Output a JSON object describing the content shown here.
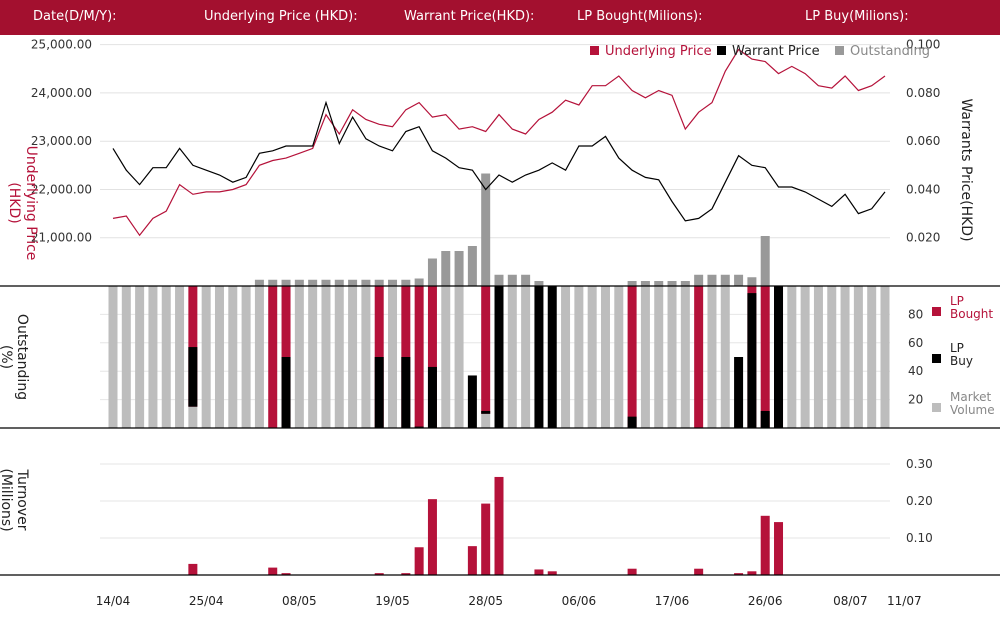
{
  "header": {
    "fields": [
      "Date(D/M/Y):",
      "Underlying Price (HKD):",
      "Warrant  Price(HKD):",
      "LP Bought(Milions):",
      "LP Buy(Milions):"
    ]
  },
  "colors": {
    "header": "#a3102f",
    "underlying": "#b5123a",
    "warrant": "#000000",
    "outstanding": "#999999",
    "market_volume": "#bdbdbd",
    "lp_bought": "#b5123a",
    "lp_buy": "#000000",
    "turnover": "#b5123a"
  },
  "chart_data": [
    {
      "type": "line",
      "panel": "price",
      "legend": {
        "placement": "top-right",
        "entries": [
          "Underlying Price",
          "Warrant  Price",
          "Outstanding"
        ]
      },
      "left_axis": {
        "label": "Underlying Price (HKD)",
        "ticks": [
          "25,000.00",
          "24,000.00",
          "23,000.00",
          "22,000.00",
          "21,000.00"
        ],
        "tick_values": [
          25000,
          24000,
          23000,
          22000,
          21000
        ],
        "range": [
          20000,
          25200
        ]
      },
      "right_axis": {
        "label": "Warrants  Price(HKD)",
        "ticks": [
          "0.100",
          "0.080",
          "0.060",
          "0.040",
          "0.020"
        ],
        "tick_values": [
          0.1,
          0.08,
          0.06,
          0.04,
          0.02
        ],
        "range": [
          0,
          0.104
        ]
      },
      "series": [
        {
          "name": "Underlying Price",
          "axis": "left",
          "values": [
            21400,
            21450,
            21050,
            21400,
            21550,
            22100,
            21900,
            21950,
            21950,
            22000,
            22100,
            22500,
            22600,
            22650,
            22750,
            22850,
            23550,
            23150,
            23650,
            23450,
            23350,
            23300,
            23650,
            23800,
            23500,
            23550,
            23250,
            23300,
            23200,
            23550,
            23250,
            23150,
            23450,
            23600,
            23850,
            23750,
            24150,
            24150,
            24350,
            24050,
            23900,
            24050,
            23950,
            23250,
            23600,
            23800,
            24450,
            24900,
            24700,
            24650,
            24400,
            24550,
            24400,
            24150,
            24100,
            24350,
            24050,
            24150,
            24350
          ]
        },
        {
          "name": "Warrant  Price",
          "axis": "right",
          "values": [
            0.057,
            0.048,
            0.042,
            0.049,
            0.049,
            0.057,
            0.05,
            0.048,
            0.046,
            0.043,
            0.045,
            0.055,
            0.056,
            0.058,
            0.058,
            0.058,
            0.076,
            0.059,
            0.07,
            0.061,
            0.058,
            0.056,
            0.064,
            0.066,
            0.056,
            0.053,
            0.049,
            0.048,
            0.04,
            0.046,
            0.043,
            0.046,
            0.048,
            0.051,
            0.048,
            0.058,
            0.058,
            0.062,
            0.053,
            0.048,
            0.045,
            0.044,
            0.035,
            0.027,
            0.028,
            0.032,
            0.043,
            0.054,
            0.05,
            0.049,
            0.041,
            0.041,
            0.039,
            0.036,
            0.033,
            0.038,
            0.03,
            0.032,
            0.039
          ]
        },
        {
          "name": "Outstanding",
          "axis": "outstanding",
          "type": "bar",
          "values": [
            0,
            0,
            0,
            0,
            0,
            0,
            0,
            0,
            0,
            0,
            0,
            2.5,
            2.5,
            2.5,
            2.5,
            2.5,
            2.5,
            2.5,
            2.5,
            2.5,
            2.5,
            2.5,
            2.5,
            3,
            11,
            14,
            14,
            16,
            45,
            4.5,
            4.5,
            4.5,
            2,
            0,
            0,
            0,
            0,
            0,
            0,
            2,
            2,
            2,
            2,
            2,
            4.5,
            4.5,
            4.5,
            4.5,
            3.5,
            20,
            0,
            0,
            0,
            0,
            0,
            0,
            0,
            0,
            0
          ],
          "range": [
            0,
            60
          ]
        }
      ]
    },
    {
      "type": "bar",
      "panel": "outstanding",
      "axis_label": "Outstanding\n(%)",
      "ticks": [
        "80",
        "60",
        "40",
        "20"
      ],
      "tick_values": [
        80,
        60,
        40,
        20
      ],
      "range": [
        0,
        100
      ],
      "legend": {
        "placement": "right",
        "entries": [
          "LP\nBought",
          "LP\nBuy",
          "Market\nVolume"
        ]
      },
      "series": [
        {
          "name": "LP Bought",
          "values": [
            0,
            0,
            0,
            0,
            0,
            0,
            100,
            0,
            0,
            0,
            0,
            0,
            100,
            100,
            0,
            0,
            0,
            0,
            0,
            0,
            100,
            0,
            100,
            100,
            100,
            0,
            0,
            0,
            100,
            0,
            0,
            0,
            0,
            0,
            0,
            0,
            0,
            0,
            0,
            100,
            0,
            0,
            0,
            0,
            100,
            0,
            0,
            0,
            100,
            100,
            100,
            0,
            0,
            0,
            0,
            0,
            0,
            0,
            0
          ]
        },
        {
          "name": "LP Buy",
          "values": [
            0,
            0,
            0,
            0,
            0,
            0,
            57,
            0,
            0,
            0,
            0,
            0,
            0,
            50,
            0,
            0,
            0,
            0,
            0,
            0,
            50,
            0,
            50,
            1,
            43,
            0,
            0,
            37,
            12,
            100,
            0,
            0,
            100,
            100,
            0,
            0,
            0,
            0,
            0,
            8,
            0,
            0,
            0,
            0,
            0,
            0,
            0,
            50,
            95,
            12,
            100,
            0,
            0,
            0,
            0,
            0,
            0,
            0,
            0
          ]
        },
        {
          "name": "Market Volume",
          "values": [
            100,
            100,
            100,
            100,
            100,
            100,
            15,
            100,
            100,
            100,
            100,
            100,
            0,
            0,
            100,
            100,
            100,
            100,
            100,
            100,
            0,
            100,
            0,
            0,
            0,
            100,
            100,
            0,
            10,
            0,
            100,
            100,
            0,
            0,
            100,
            100,
            100,
            100,
            100,
            0,
            100,
            100,
            100,
            100,
            0,
            100,
            100,
            0,
            0,
            0,
            0,
            100,
            100,
            100,
            100,
            100,
            100,
            100,
            100
          ]
        }
      ]
    },
    {
      "type": "bar",
      "panel": "turnover",
      "axis_label": "Turnover\n(Millions)",
      "ticks": [
        "0.30",
        "0.20",
        "0.10"
      ],
      "tick_values": [
        0.3,
        0.2,
        0.1
      ],
      "range": [
        0,
        0.3
      ],
      "series": [
        {
          "name": "Turnover",
          "values": [
            0,
            0,
            0,
            0,
            0,
            0,
            0.03,
            0,
            0,
            0,
            0,
            0,
            0.02,
            0.005,
            0,
            0,
            0,
            0,
            0,
            0,
            0.005,
            0,
            0.005,
            0.075,
            0.205,
            0,
            0,
            0.078,
            0.193,
            0.265,
            0,
            0,
            0.015,
            0.01,
            0,
            0,
            0,
            0,
            0,
            0.017,
            0,
            0,
            0,
            0,
            0.017,
            0,
            0,
            0.005,
            0.01,
            0.16,
            0.143,
            0,
            0,
            0,
            0,
            0,
            0,
            0,
            0
          ]
        }
      ]
    }
  ],
  "x_axis": {
    "labels": [
      "14/04",
      "25/04",
      "08/05",
      "19/05",
      "28/05",
      "06/06",
      "17/06",
      "26/06",
      "08/07",
      "11/07"
    ],
    "label_index": [
      0,
      7,
      14,
      21,
      28,
      35,
      42,
      49,
      56,
      59
    ]
  }
}
